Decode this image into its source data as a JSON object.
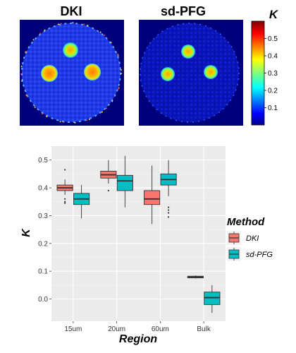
{
  "maps": {
    "left_title": "DKI",
    "right_title": "sd-PFG",
    "colorbar": {
      "title": "K",
      "ticks": [
        "0.1",
        "0.2",
        "0.3",
        "0.4",
        "0.5"
      ],
      "tick_values": [
        0.1,
        0.2,
        0.3,
        0.4,
        0.5
      ],
      "range": [
        0,
        0.6
      ],
      "colormap": "jet"
    }
  },
  "chart_data": {
    "type": "box",
    "xlabel": "Region",
    "ylabel": "K",
    "categories": [
      "15um",
      "20um",
      "60um",
      "Bulk"
    ],
    "ylim": [
      -0.08,
      0.55
    ],
    "yticks": [
      0.0,
      0.1,
      0.2,
      0.3,
      0.4,
      0.5
    ],
    "ytick_labels": [
      "0.0",
      "0.1",
      "0.2",
      "0.3",
      "0.4",
      "0.5"
    ],
    "grid": true,
    "legend": {
      "title": "Method",
      "position": "right"
    },
    "series": [
      {
        "name": "DKI",
        "color": "#F8766D",
        "boxes": [
          {
            "min": 0.375,
            "q1": 0.39,
            "median": 0.4,
            "q3": 0.41,
            "max": 0.43,
            "outliers": [
              0.465,
              0.36,
              0.35,
              0.345
            ]
          },
          {
            "min": 0.415,
            "q1": 0.435,
            "median": 0.447,
            "q3": 0.46,
            "max": 0.5,
            "outliers": [
              0.39
            ]
          },
          {
            "min": 0.27,
            "q1": 0.34,
            "median": 0.36,
            "q3": 0.39,
            "max": 0.48,
            "outliers": []
          },
          {
            "min": 0.074,
            "q1": 0.076,
            "median": 0.079,
            "q3": 0.082,
            "max": 0.085,
            "outliers": []
          }
        ]
      },
      {
        "name": "sd-PFG",
        "color": "#00BFC4",
        "boxes": [
          {
            "min": 0.29,
            "q1": 0.34,
            "median": 0.36,
            "q3": 0.38,
            "max": 0.41,
            "outliers": []
          },
          {
            "min": 0.33,
            "q1": 0.39,
            "median": 0.425,
            "q3": 0.445,
            "max": 0.515,
            "outliers": []
          },
          {
            "min": 0.37,
            "q1": 0.41,
            "median": 0.43,
            "q3": 0.45,
            "max": 0.5,
            "outliers": [
              0.33,
              0.32,
              0.31,
              0.295
            ]
          },
          {
            "min": -0.05,
            "q1": -0.02,
            "median": 0.005,
            "q3": 0.025,
            "max": 0.05,
            "outliers": []
          }
        ]
      }
    ]
  }
}
